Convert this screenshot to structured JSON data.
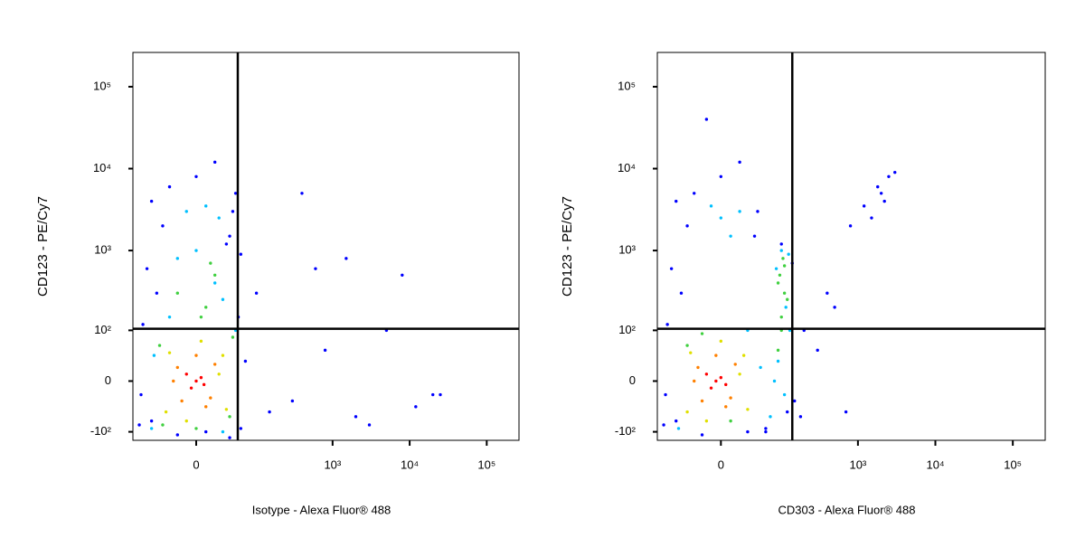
{
  "chart_data": [
    {
      "type": "scatter",
      "x_label": "Isotype - Alexa Fluor® 488",
      "y_label": "CD123 - PE/Cy7",
      "xscale": "logicle",
      "yscale": "logicle",
      "xlim": [
        -110,
        262144
      ],
      "ylim": [
        -130,
        262144
      ],
      "xticks": [
        0,
        {
          "value": 1000,
          "label": "10³"
        },
        {
          "value": 10000,
          "label": "10⁴"
        },
        {
          "value": 100000,
          "label": "10⁵"
        }
      ],
      "yticks": [
        {
          "value": -100,
          "label": "-10²"
        },
        0,
        {
          "value": 100,
          "label": "10²"
        },
        {
          "value": 1000,
          "label": "10³"
        },
        {
          "value": 10000,
          "label": "10⁴"
        },
        {
          "value": 100000,
          "label": "10⁵"
        }
      ],
      "quadrant_x": 54,
      "quadrant_y": 105,
      "point_groups": [
        {
          "color": "#0000ff",
          "x": [
            -90,
            -80,
            60,
            55,
            -70,
            70,
            -40,
            -60,
            50,
            -30,
            45,
            -85,
            0,
            20,
            -50,
            40,
            300,
            800,
            2000,
            5000,
            12000,
            20000,
            400,
            1500,
            3000,
            600,
            8000,
            25000,
            150,
            100,
            -20,
            10,
            40,
            -60,
            60,
            35
          ],
          "y": [
            -80,
            120,
            -90,
            150,
            600,
            30,
            2000,
            4000,
            5000,
            6000,
            3000,
            -20,
            8000,
            12000,
            300,
            1500,
            -30,
            50,
            -60,
            100,
            -40,
            -20,
            5000,
            800,
            -80,
            600,
            500,
            -20,
            -50,
            300,
            -110,
            -100,
            -120,
            -70,
            900,
            1200
          ]
        },
        {
          "color": "#00c0ff",
          "x": [
            -60,
            50,
            -55,
            30,
            -30,
            0,
            25,
            -10,
            10,
            20,
            -20,
            30
          ],
          "y": [
            -90,
            100,
            40,
            -100,
            150,
            1000,
            2500,
            3000,
            3500,
            400,
            800,
            250
          ]
        },
        {
          "color": "#40d040",
          "x": [
            -45,
            40,
            -40,
            45,
            0,
            10,
            -20,
            20,
            5,
            15
          ],
          "y": [
            60,
            -60,
            -80,
            80,
            -90,
            200,
            300,
            500,
            150,
            700
          ]
        },
        {
          "color": "#e0e000",
          "x": [
            -35,
            30,
            -30,
            35,
            5,
            -10,
            25
          ],
          "y": [
            -50,
            40,
            45,
            -45,
            70,
            -70,
            10
          ]
        },
        {
          "color": "#ff8000",
          "x": [
            -20,
            15,
            -15,
            20,
            0,
            -25,
            10
          ],
          "y": [
            20,
            -25,
            -30,
            25,
            40,
            0,
            -40
          ]
        },
        {
          "color": "#ff0000",
          "x": [
            -5,
            5,
            0,
            -10,
            8
          ],
          "y": [
            -10,
            5,
            0,
            10,
            -5
          ]
        }
      ]
    },
    {
      "type": "scatter",
      "x_label": "CD303 - Alexa Fluor® 488",
      "y_label": "CD123 - PE/Cy7",
      "xscale": "logicle",
      "yscale": "logicle",
      "xlim": [
        -110,
        262144
      ],
      "ylim": [
        -130,
        262144
      ],
      "xticks": [
        0,
        {
          "value": 1000,
          "label": "10³"
        },
        {
          "value": 10000,
          "label": "10⁴"
        },
        {
          "value": 100000,
          "label": "10⁵"
        }
      ],
      "yticks": [
        {
          "value": -100,
          "label": "-10²"
        },
        0,
        {
          "value": 100,
          "label": "10²"
        },
        {
          "value": 1000,
          "label": "10³"
        },
        {
          "value": 10000,
          "label": "10⁴"
        },
        {
          "value": 100000,
          "label": "10⁵"
        }
      ],
      "quadrant_x": 140,
      "quadrant_y": 105,
      "point_groups": [
        {
          "color": "#0000ff",
          "x": [
            -90,
            -80,
            60,
            -70,
            -40,
            -60,
            -30,
            45,
            0,
            20,
            -50,
            40,
            150,
            200,
            300,
            500,
            800,
            1200,
            2000,
            2500,
            3000,
            1800,
            2200,
            1500,
            400,
            180,
            -85,
            140,
            120,
            60,
            -20,
            30,
            -60,
            100,
            700,
            -15
          ],
          "y": [
            -80,
            120,
            -90,
            600,
            2000,
            4000,
            5000,
            3000,
            8000,
            12000,
            300,
            1500,
            -30,
            100,
            50,
            200,
            2000,
            3500,
            5000,
            8000,
            9000,
            6000,
            4000,
            2500,
            300,
            -60,
            -20,
            700,
            -50,
            -100,
            -110,
            -100,
            -70,
            1200,
            -50,
            40000
          ]
        },
        {
          "color": "#00c0ff",
          "x": [
            80,
            130,
            85,
            125,
            100,
            110,
            90,
            115,
            -55,
            30,
            0,
            20,
            -10,
            10,
            50,
            70
          ],
          "y": [
            0,
            100,
            600,
            900,
            1000,
            -20,
            30,
            200,
            -90,
            100,
            2500,
            3000,
            3500,
            1500,
            20,
            -60
          ]
        },
        {
          "color": "#40d040",
          "x": [
            90,
            100,
            110,
            95,
            105,
            120,
            100,
            90,
            110,
            -20,
            10,
            -40
          ],
          "y": [
            50,
            150,
            300,
            500,
            800,
            250,
            100,
            400,
            650,
            90,
            -70,
            60
          ]
        },
        {
          "color": "#e0e000",
          "x": [
            -40,
            25,
            -35,
            30,
            0,
            -15,
            20
          ],
          "y": [
            -50,
            40,
            45,
            -45,
            70,
            -70,
            10
          ]
        },
        {
          "color": "#ff8000",
          "x": [
            -25,
            10,
            -20,
            15,
            -5,
            -30,
            5
          ],
          "y": [
            20,
            -25,
            -30,
            25,
            40,
            0,
            -40
          ]
        },
        {
          "color": "#ff0000",
          "x": [
            -10,
            0,
            -5,
            -15,
            5
          ],
          "y": [
            -10,
            5,
            0,
            10,
            -5
          ]
        }
      ]
    }
  ]
}
